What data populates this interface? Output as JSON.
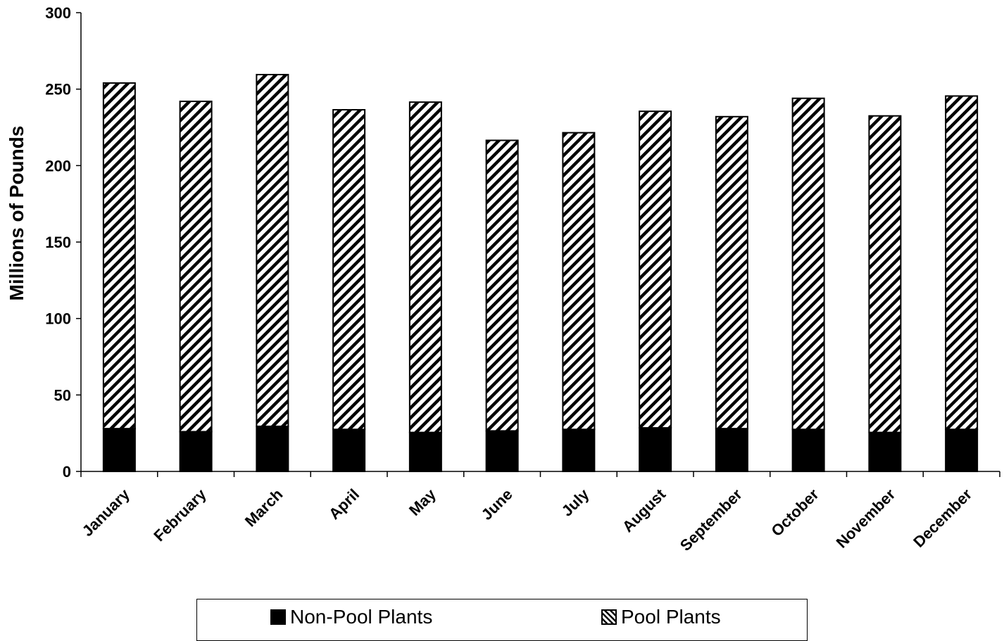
{
  "chart_data": {
    "type": "bar",
    "stacked": true,
    "categories": [
      "January",
      "February",
      "March",
      "April",
      "May",
      "June",
      "July",
      "August",
      "September",
      "October",
      "November",
      "December"
    ],
    "series": [
      {
        "name": "Non-Pool Plants",
        "values": [
          28,
          26,
          29.5,
          27.5,
          25.5,
          26.5,
          27.5,
          28.5,
          28,
          27.5,
          25.5,
          27.5
        ],
        "fill": "solid",
        "color": "#000000"
      },
      {
        "name": "Pool Plants",
        "values": [
          226,
          216,
          230,
          209,
          216,
          190,
          194,
          207,
          204,
          216.5,
          207,
          218
        ],
        "fill": "hatch",
        "color": "#000000"
      }
    ],
    "title": "",
    "xlabel": "",
    "ylabel": "Millions of Pounds",
    "ylim": [
      0,
      300
    ],
    "yticks": [
      0,
      50,
      100,
      150,
      200,
      250,
      300
    ],
    "grid": false,
    "legend_position": "bottom"
  }
}
